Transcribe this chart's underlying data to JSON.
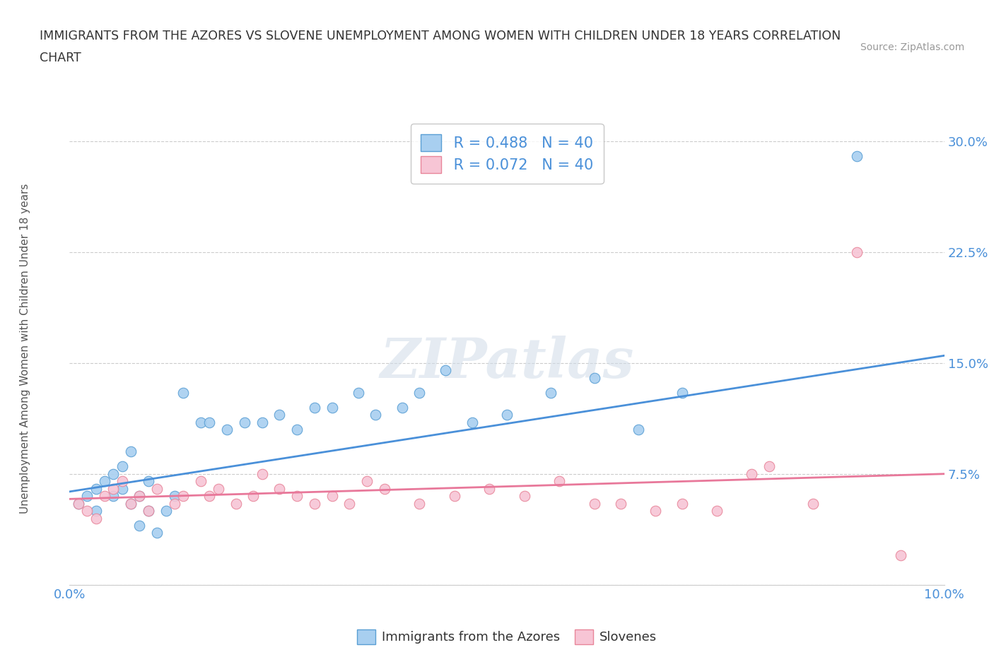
{
  "title_line1": "IMMIGRANTS FROM THE AZORES VS SLOVENE UNEMPLOYMENT AMONG WOMEN WITH CHILDREN UNDER 18 YEARS CORRELATION",
  "title_line2": "CHART",
  "source": "Source: ZipAtlas.com",
  "ylabel": "Unemployment Among Women with Children Under 18 years",
  "xlim": [
    0.0,
    0.1
  ],
  "ylim": [
    0.0,
    0.32
  ],
  "xticks": [
    0.0,
    0.02,
    0.04,
    0.06,
    0.08,
    0.1
  ],
  "yticks": [
    0.0,
    0.075,
    0.15,
    0.225,
    0.3
  ],
  "bg_color": "#ffffff",
  "grid_color": "#cccccc",
  "azores_color": "#a8cff0",
  "slovene_color": "#f7c5d5",
  "azores_edge_color": "#5a9fd4",
  "slovene_edge_color": "#e8869a",
  "azores_line_color": "#4a90d9",
  "slovene_line_color": "#e8789a",
  "R_azores": 0.488,
  "N_azores": 40,
  "R_slovene": 0.072,
  "N_slovene": 40,
  "legend_label_azores": "Immigrants from the Azores",
  "legend_label_slovene": "Slovenes",
  "watermark": "ZIPatlas",
  "azores_scatter_x": [
    0.001,
    0.002,
    0.003,
    0.003,
    0.004,
    0.005,
    0.005,
    0.006,
    0.006,
    0.007,
    0.007,
    0.008,
    0.008,
    0.009,
    0.009,
    0.01,
    0.011,
    0.012,
    0.013,
    0.015,
    0.016,
    0.018,
    0.02,
    0.022,
    0.024,
    0.026,
    0.028,
    0.03,
    0.033,
    0.035,
    0.038,
    0.04,
    0.043,
    0.046,
    0.05,
    0.055,
    0.06,
    0.065,
    0.07,
    0.09
  ],
  "azores_scatter_y": [
    0.055,
    0.06,
    0.065,
    0.05,
    0.07,
    0.06,
    0.075,
    0.08,
    0.065,
    0.09,
    0.055,
    0.04,
    0.06,
    0.05,
    0.07,
    0.035,
    0.05,
    0.06,
    0.13,
    0.11,
    0.11,
    0.105,
    0.11,
    0.11,
    0.115,
    0.105,
    0.12,
    0.12,
    0.13,
    0.115,
    0.12,
    0.13,
    0.145,
    0.11,
    0.115,
    0.13,
    0.14,
    0.105,
    0.13,
    0.29
  ],
  "slovene_scatter_x": [
    0.001,
    0.002,
    0.003,
    0.004,
    0.005,
    0.006,
    0.007,
    0.008,
    0.009,
    0.01,
    0.012,
    0.013,
    0.015,
    0.016,
    0.017,
    0.019,
    0.021,
    0.022,
    0.024,
    0.026,
    0.028,
    0.03,
    0.032,
    0.034,
    0.036,
    0.04,
    0.044,
    0.048,
    0.052,
    0.056,
    0.06,
    0.063,
    0.067,
    0.07,
    0.074,
    0.078,
    0.08,
    0.085,
    0.09,
    0.095
  ],
  "slovene_scatter_y": [
    0.055,
    0.05,
    0.045,
    0.06,
    0.065,
    0.07,
    0.055,
    0.06,
    0.05,
    0.065,
    0.055,
    0.06,
    0.07,
    0.06,
    0.065,
    0.055,
    0.06,
    0.075,
    0.065,
    0.06,
    0.055,
    0.06,
    0.055,
    0.07,
    0.065,
    0.055,
    0.06,
    0.065,
    0.06,
    0.07,
    0.055,
    0.055,
    0.05,
    0.055,
    0.05,
    0.075,
    0.08,
    0.055,
    0.225,
    0.02
  ],
  "azores_trend_x": [
    0.0,
    0.1
  ],
  "azores_trend_y": [
    0.063,
    0.155
  ],
  "slovene_trend_x": [
    0.0,
    0.1
  ],
  "slovene_trend_y": [
    0.058,
    0.075
  ]
}
